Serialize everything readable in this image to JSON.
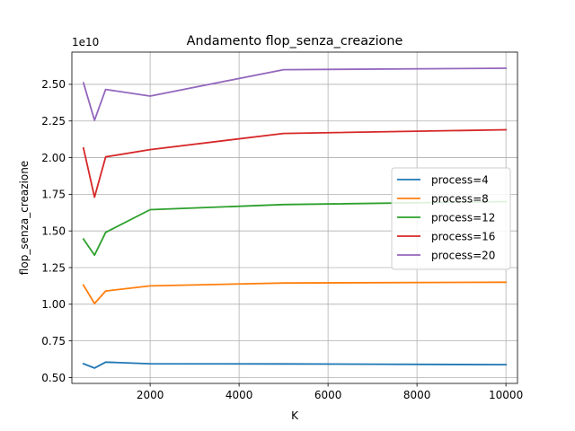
{
  "chart_data": {
    "type": "line",
    "title": "Andamento flop_senza_creazione",
    "xlabel": "K",
    "ylabel": "flop_senza_creazione",
    "y_offset_label": "1e10",
    "xlim": [
      240,
      10260
    ],
    "ylim": [
      0.46,
      2.72
    ],
    "x_ticks": [
      2000,
      4000,
      6000,
      8000,
      10000
    ],
    "y_ticks": [
      0.5,
      0.75,
      1.0,
      1.25,
      1.5,
      1.75,
      2.0,
      2.25,
      2.5
    ],
    "y_tick_labels": [
      "0.50",
      "0.75",
      "1.00",
      "1.25",
      "1.50",
      "1.75",
      "2.00",
      "2.25",
      "2.50"
    ],
    "grid": true,
    "legend_position": "center-right",
    "x": [
      500,
      750,
      1000,
      2000,
      5000,
      10000
    ],
    "series": [
      {
        "name": "process=4",
        "color": "#1f77b4",
        "values": [
          0.594,
          0.565,
          0.605,
          0.594,
          0.593,
          0.588
        ]
      },
      {
        "name": "process=8",
        "color": "#ff7f0e",
        "values": [
          1.13,
          1.005,
          1.09,
          1.125,
          1.145,
          1.15
        ]
      },
      {
        "name": "process=12",
        "color": "#2ca02c",
        "values": [
          1.445,
          1.335,
          1.49,
          1.645,
          1.68,
          1.7
        ]
      },
      {
        "name": "process=16",
        "color": "#d62728",
        "values": [
          2.065,
          1.73,
          2.005,
          2.055,
          2.165,
          2.19
        ]
      },
      {
        "name": "process=20",
        "color": "#9467bd",
        "values": [
          2.51,
          2.255,
          2.465,
          2.42,
          2.6,
          2.61
        ]
      }
    ]
  }
}
